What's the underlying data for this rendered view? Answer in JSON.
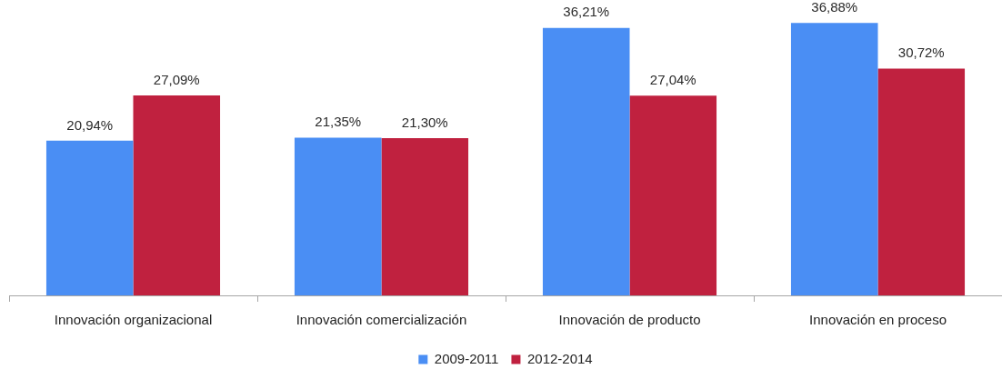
{
  "chart_data": {
    "type": "bar",
    "categories": [
      "Innovación organizacional",
      "Innovación comercialización",
      "Innovación de producto",
      "Innovación en proceso"
    ],
    "series": [
      {
        "name": "2009-2011",
        "color": "#4a8ef4",
        "values": [
          20.94,
          21.35,
          36.21,
          36.88
        ],
        "value_labels": [
          "20,94%",
          "21,35%",
          "36,21%",
          "36,88%"
        ]
      },
      {
        "name": "2012-2014",
        "color": "#c0213f",
        "values": [
          27.09,
          21.3,
          27.04,
          30.72
        ],
        "value_labels": [
          "27,09%",
          "21,30%",
          "27,04%",
          "30,72%"
        ]
      }
    ],
    "legend": "bottom",
    "grid": false,
    "tick_labels": "x"
  }
}
